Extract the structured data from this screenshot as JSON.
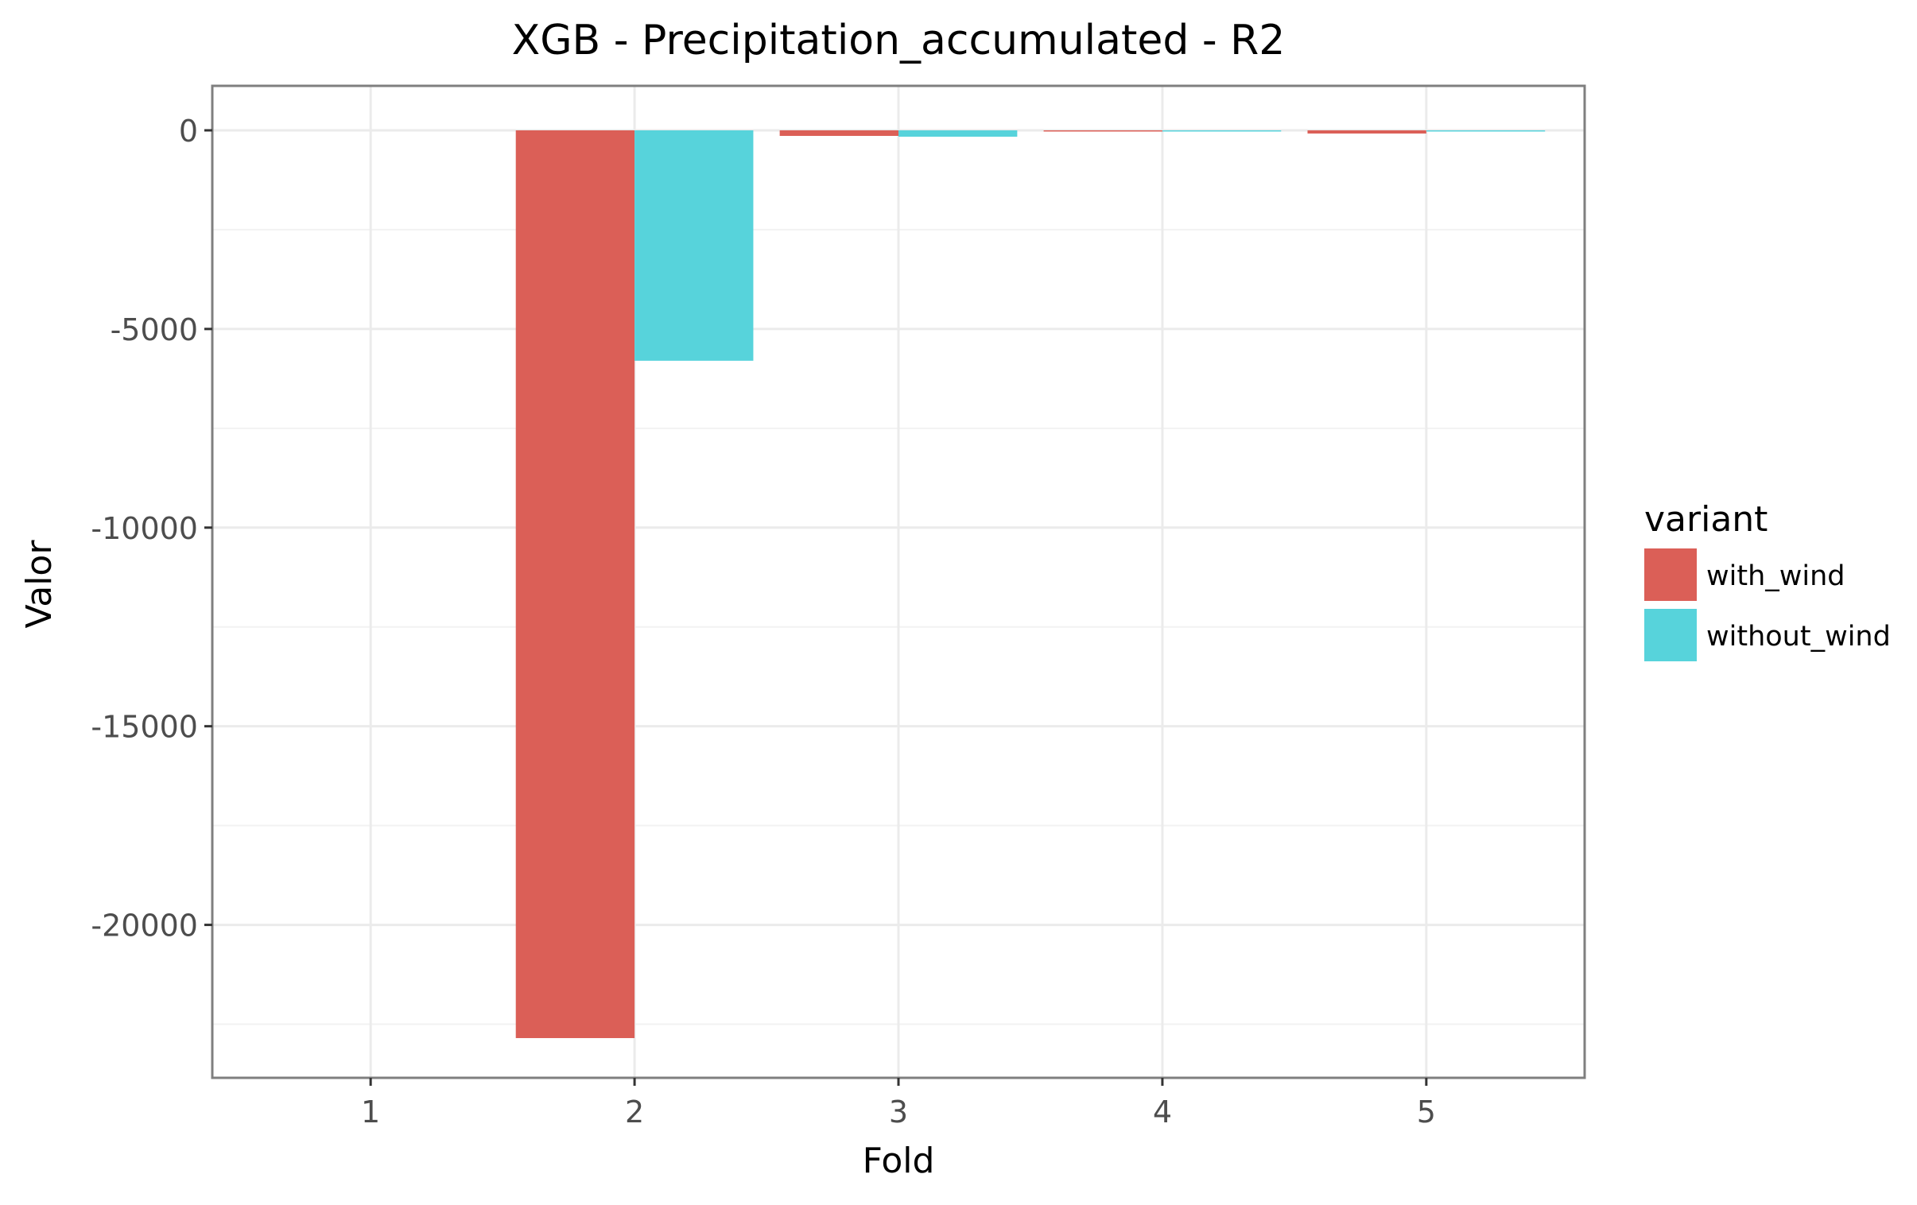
{
  "chart_data": {
    "type": "bar",
    "title": "XGB - Precipitation_accumulated - R2",
    "xlabel": "Fold",
    "ylabel": "Valor",
    "categories": [
      "1",
      "2",
      "3",
      "4",
      "5"
    ],
    "series": [
      {
        "name": "with_wind",
        "color": "#DB5F57",
        "values": [
          0,
          -22850,
          -140,
          -20,
          -80
        ]
      },
      {
        "name": "without_wind",
        "color": "#57D3DB",
        "values": [
          0,
          -5800,
          -160,
          -15,
          -25
        ]
      }
    ],
    "yticks": [
      0,
      -5000,
      -10000,
      -15000,
      -20000
    ],
    "ytick_labels": [
      "0",
      "-5000",
      "-10000",
      "-15000",
      "-20000"
    ],
    "ylim": [
      -23850,
      1120
    ],
    "grid": true,
    "legend": {
      "title": "variant",
      "position": "right"
    }
  }
}
